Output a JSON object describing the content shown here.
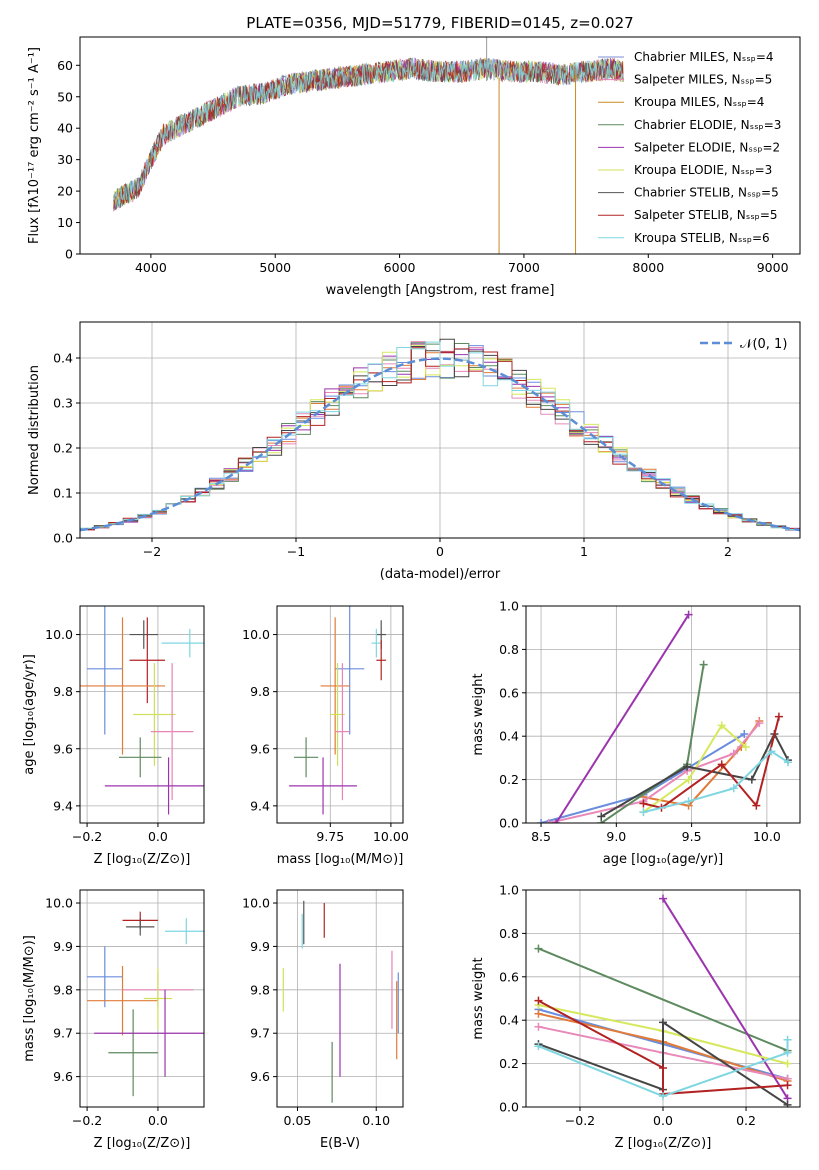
{
  "colors": {
    "cm": "#7d8fd6",
    "sm": "#e784b8",
    "km": "#c98a22",
    "ce": "#5e8a5f",
    "se": "#9b35ad",
    "ke": "#d1e05a",
    "cs": "#555555",
    "ss": "#b22222",
    "ks": "#7fd6e0",
    "mass_c1": "#6a8ddd",
    "mass_c2": "#e07b39",
    "mass_c3": "#e889b9",
    "mass_c4": "#5e8a5f",
    "mass_c5": "#9b35ad",
    "mass_c6": "#d6e85c",
    "mass_c7": "#454545",
    "mass_c8": "#b22222",
    "mass_c9": "#7fd6e0"
  },
  "chart_data": [
    {
      "id": "spectrum",
      "type": "line",
      "title": "PLATE=0356, MJD=51779, FIBERID=0145, z=0.027",
      "xlabel": "wavelength [Angstrom, rest frame]",
      "ylabel": "Flux [fλ10⁻¹⁷ erg cm⁻² s⁻¹ A⁻¹]",
      "xlim": [
        3430,
        9220
      ],
      "ylim": [
        0,
        69
      ],
      "xticks": [
        "4000",
        "5000",
        "6000",
        "7000",
        "8000",
        "9000"
      ],
      "yticks": [
        "0",
        "10",
        "20",
        "30",
        "40",
        "50",
        "60"
      ],
      "continuum": {
        "x": [
          3700,
          3900,
          4000,
          4100,
          4300,
          4500,
          4700,
          4900,
          5100,
          5300,
          5500,
          5700,
          5900,
          6100,
          6300,
          6500,
          6700,
          6900,
          7100,
          7300,
          7500,
          7700,
          7800
        ],
        "y": [
          17,
          21,
          30,
          38,
          42,
          46,
          50,
          51,
          54,
          55,
          56,
          57,
          58,
          59,
          58,
          58,
          59,
          58,
          58,
          57,
          58,
          59,
          58
        ]
      },
      "legend": [
        {
          "label": "Chabrier MILES, Nₛₛₚ=4",
          "color": "cm"
        },
        {
          "label": "Salpeter MILES, Nₛₛₚ=5",
          "color": "sm"
        },
        {
          "label": "Kroupa MILES, Nₛₛₚ=4",
          "color": "km"
        },
        {
          "label": "Chabrier ELODIE, Nₛₛₚ=3",
          "color": "ce"
        },
        {
          "label": "Salpeter ELODIE, Nₛₛₚ=2",
          "color": "se"
        },
        {
          "label": "Kroupa ELODIE, Nₛₛₚ=3",
          "color": "ke"
        },
        {
          "label": "Chabrier STELIB, Nₛₛₚ=5",
          "color": "cs"
        },
        {
          "label": "Salpeter STELIB, Nₛₛₚ=5",
          "color": "ss"
        },
        {
          "label": "Kroupa STELIB, Nₛₛₚ=6",
          "color": "ks"
        }
      ]
    },
    {
      "id": "residuals",
      "type": "histogram",
      "xlabel": "(data-model)/error",
      "ylabel": "Normed distribution",
      "xlim": [
        -2.5,
        2.5
      ],
      "ylim": [
        0,
        0.48
      ],
      "xticks": [
        "−2",
        "−1",
        "0",
        "1",
        "2"
      ],
      "yticks": [
        "0.0",
        "0.1",
        "0.2",
        "0.3",
        "0.4"
      ],
      "grid": true,
      "legend": [
        {
          "label": "𝒩(0, 1)",
          "color": "#5b8ed6",
          "style": "dashed"
        }
      ],
      "bin_width": 0.1
    },
    {
      "id": "z-age",
      "type": "errorbar",
      "xlabel": "Z [log₁₀(Z/Z⊙)]",
      "ylabel": "age  [log₁₀(age/yr)]",
      "xlim": [
        -0.22,
        0.13
      ],
      "ylim": [
        9.34,
        10.1
      ],
      "xticks": [
        "−0.2",
        "0.0"
      ],
      "yticks": [
        "9.4",
        "9.6",
        "9.8",
        "10.0"
      ],
      "points": [
        {
          "x": -0.04,
          "y": 10.0,
          "xe": 0.04,
          "ye": 0.05,
          "color": "cs"
        },
        {
          "x": 0.09,
          "y": 9.97,
          "xe": 0.08,
          "ye": 0.05,
          "color": "ks"
        },
        {
          "x": -0.03,
          "y": 9.91,
          "xe": 0.05,
          "ye": 0.15,
          "color": "ss"
        },
        {
          "x": -0.15,
          "y": 9.88,
          "xe": 0.05,
          "ye": 0.23,
          "color": "mass_c1"
        },
        {
          "x": -0.1,
          "y": 9.82,
          "xe": 0.12,
          "ye": 0.24,
          "color": "mass_c2"
        },
        {
          "x": -0.01,
          "y": 9.72,
          "xe": 0.06,
          "ye": 0.18,
          "color": "ke"
        },
        {
          "x": 0.04,
          "y": 9.66,
          "xe": 0.06,
          "ye": 0.24,
          "color": "sm"
        },
        {
          "x": -0.05,
          "y": 9.57,
          "xe": 0.06,
          "ye": 0.07,
          "color": "ce"
        },
        {
          "x": 0.03,
          "y": 9.47,
          "xe": 0.18,
          "ye": 0.1,
          "color": "se"
        }
      ]
    },
    {
      "id": "mass-age",
      "type": "errorbar",
      "xlabel": "mass [log₁₀(M/M⊙)]",
      "ylabel": "",
      "xlim": [
        9.53,
        10.05
      ],
      "ylim": [
        9.34,
        10.1
      ],
      "xticks": [
        "9.75",
        "10.00"
      ],
      "yticks": [
        "9.4",
        "9.6",
        "9.8",
        "10.0"
      ],
      "points": [
        {
          "x": 9.96,
          "y": 10.0,
          "xe": 0.02,
          "ye": 0.05,
          "color": "cs"
        },
        {
          "x": 9.94,
          "y": 9.97,
          "xe": 0.02,
          "ye": 0.05,
          "color": "ks"
        },
        {
          "x": 9.96,
          "y": 9.91,
          "xe": 0.02,
          "ye": 0.07,
          "color": "ss"
        },
        {
          "x": 9.83,
          "y": 9.88,
          "xe": 0.06,
          "ye": 0.23,
          "color": "mass_c1"
        },
        {
          "x": 9.77,
          "y": 9.82,
          "xe": 0.06,
          "ye": 0.24,
          "color": "mass_c2"
        },
        {
          "x": 9.78,
          "y": 9.72,
          "xe": 0.03,
          "ye": 0.18,
          "color": "ke"
        },
        {
          "x": 9.8,
          "y": 9.66,
          "xe": 0.03,
          "ye": 0.24,
          "color": "sm"
        },
        {
          "x": 9.65,
          "y": 9.57,
          "xe": 0.05,
          "ye": 0.07,
          "color": "ce"
        },
        {
          "x": 9.72,
          "y": 9.47,
          "xe": 0.14,
          "ye": 0.1,
          "color": "se"
        }
      ]
    },
    {
      "id": "age-weight",
      "type": "line",
      "xlabel": "age  [log₁₀(age/yr)]",
      "ylabel": "mass weight",
      "xlim": [
        8.4,
        10.22
      ],
      "ylim": [
        0,
        1.0
      ],
      "xticks": [
        "8.5",
        "9.0",
        "9.5",
        "10.0"
      ],
      "yticks": [
        "0.0",
        "0.2",
        "0.4",
        "0.6",
        "0.8",
        "1.0"
      ],
      "grid": true,
      "series": [
        {
          "color": "mass_c1",
          "x": [
            8.5,
            9.18,
            9.85
          ],
          "y": [
            0.0,
            0.13,
            0.41
          ]
        },
        {
          "color": "mass_c2",
          "x": [
            9.18,
            9.48,
            9.83,
            9.95
          ],
          "y": [
            0.12,
            0.08,
            0.35,
            0.47
          ]
        },
        {
          "color": "mass_c3",
          "x": [
            8.55,
            9.18,
            9.47,
            9.78,
            9.95
          ],
          "y": [
            0.0,
            0.1,
            0.24,
            0.32,
            0.46
          ]
        },
        {
          "color": "mass_c4",
          "x": [
            8.9,
            9.47,
            9.58
          ],
          "y": [
            0.0,
            0.27,
            0.73
          ]
        },
        {
          "color": "mass_c5",
          "x": [
            8.6,
            9.48
          ],
          "y": [
            0.0,
            0.96
          ]
        },
        {
          "color": "mass_c6",
          "x": [
            9.18,
            9.48,
            9.7,
            9.86
          ],
          "y": [
            0.05,
            0.2,
            0.45,
            0.35
          ]
        },
        {
          "color": "mass_c7",
          "x": [
            8.9,
            9.47,
            9.9,
            10.05,
            10.14
          ],
          "y": [
            0.03,
            0.26,
            0.2,
            0.41,
            0.29
          ]
        },
        {
          "color": "mass_c8",
          "x": [
            9.18,
            9.3,
            9.7,
            9.93,
            10.08
          ],
          "y": [
            0.09,
            0.07,
            0.27,
            0.08,
            0.49
          ]
        },
        {
          "color": "mass_c9",
          "x": [
            9.18,
            9.48,
            9.78,
            10.03,
            10.14
          ],
          "y": [
            0.05,
            0.1,
            0.16,
            0.33,
            0.28
          ]
        }
      ]
    },
    {
      "id": "z-mass",
      "type": "errorbar",
      "xlabel": "Z [log₁₀(Z/Z⊙)]",
      "ylabel": "mass [log₁₀(M/M⊙)]",
      "xlim": [
        -0.22,
        0.13
      ],
      "ylim": [
        9.53,
        10.03
      ],
      "xticks": [
        "−0.2",
        "0.0"
      ],
      "yticks": [
        "9.6",
        "9.7",
        "9.8",
        "9.9",
        "10.0"
      ],
      "points": [
        {
          "x": -0.05,
          "y": 9.96,
          "xe": 0.05,
          "ye": 0.02,
          "color": "ss"
        },
        {
          "x": -0.05,
          "y": 9.945,
          "xe": 0.04,
          "ye": 0.02,
          "color": "cs"
        },
        {
          "x": 0.08,
          "y": 9.935,
          "xe": 0.06,
          "ye": 0.03,
          "color": "ks"
        },
        {
          "x": -0.15,
          "y": 9.83,
          "xe": 0.05,
          "ye": 0.07,
          "color": "mass_c1"
        },
        {
          "x": 0.0,
          "y": 9.8,
          "xe": 0.1,
          "ye": 0.04,
          "color": "sm"
        },
        {
          "x": -0.1,
          "y": 9.775,
          "xe": 0.1,
          "ye": 0.08,
          "color": "mass_c2"
        },
        {
          "x": 0.0,
          "y": 9.78,
          "xe": 0.04,
          "ye": 0.07,
          "color": "ke"
        },
        {
          "x": -0.07,
          "y": 9.655,
          "xe": 0.07,
          "ye": 0.1,
          "color": "ce"
        },
        {
          "x": 0.02,
          "y": 9.7,
          "xe": 0.2,
          "ye": 0.1,
          "color": "se"
        }
      ]
    },
    {
      "id": "ebv-mass",
      "type": "errorbar",
      "xlabel": "E(B-V)",
      "ylabel": "",
      "xlim": [
        0.037,
        0.117
      ],
      "ylim": [
        9.53,
        10.03
      ],
      "xticks": [
        "0.05",
        "0.10"
      ],
      "yticks": [
        "9.6",
        "9.7",
        "9.8",
        "9.9",
        "10.0"
      ],
      "points": [
        {
          "x": 0.067,
          "y": 9.96,
          "xe": 0,
          "ye": 0.04,
          "color": "ss"
        },
        {
          "x": 0.054,
          "y": 9.955,
          "xe": 0,
          "ye": 0.05,
          "color": "cs"
        },
        {
          "x": 0.053,
          "y": 9.935,
          "xe": 0,
          "ye": 0.04,
          "color": "ks"
        },
        {
          "x": 0.041,
          "y": 9.8,
          "xe": 0,
          "ye": 0.05,
          "color": "ke"
        },
        {
          "x": 0.072,
          "y": 9.61,
          "xe": 0,
          "ye": 0.07,
          "color": "ce"
        },
        {
          "x": 0.077,
          "y": 9.73,
          "xe": 0,
          "ye": 0.13,
          "color": "se"
        },
        {
          "x": 0.11,
          "y": 9.8,
          "xe": 0,
          "ye": 0.09,
          "color": "sm"
        },
        {
          "x": 0.113,
          "y": 9.73,
          "xe": 0,
          "ye": 0.09,
          "color": "mass_c2"
        },
        {
          "x": 0.114,
          "y": 9.77,
          "xe": 0,
          "ye": 0.07,
          "color": "mass_c1"
        }
      ]
    },
    {
      "id": "z-weight",
      "type": "line",
      "xlabel": "Z [log₁₀(Z/Z⊙)]",
      "ylabel": "mass weight",
      "xlim": [
        -0.33,
        0.33
      ],
      "ylim": [
        0,
        1.0
      ],
      "xticks": [
        "−0.2",
        "0.0",
        "0.2"
      ],
      "yticks": [
        "0.0",
        "0.2",
        "0.4",
        "0.6",
        "0.8",
        "1.0"
      ],
      "grid": true,
      "series": [
        {
          "color": "mass_c1",
          "x": [
            -0.3,
            0.3
          ],
          "y": [
            0.45,
            0.13
          ]
        },
        {
          "color": "mass_c2",
          "x": [
            -0.3,
            0.0,
            0.3
          ],
          "y": [
            0.43,
            0.3,
            0.12
          ]
        },
        {
          "color": "mass_c3",
          "x": [
            -0.3,
            0.0,
            0.3
          ],
          "y": [
            0.37,
            0.25,
            0.13
          ]
        },
        {
          "color": "mass_c4",
          "x": [
            -0.3,
            0.3
          ],
          "y": [
            0.73,
            0.26
          ]
        },
        {
          "color": "mass_c5",
          "x": [
            0.0,
            0.3
          ],
          "y": [
            0.96,
            0.04
          ]
        },
        {
          "color": "mass_c6",
          "x": [
            -0.3,
            0.0,
            0.3
          ],
          "y": [
            0.47,
            0.35,
            0.2
          ]
        },
        {
          "color": "mass_c7",
          "x": [
            -0.3,
            0.0,
            0.0,
            0.3
          ],
          "y": [
            0.29,
            0.08,
            0.39,
            0.01
          ]
        },
        {
          "color": "mass_c8",
          "x": [
            -0.3,
            0.0,
            0.0,
            0.3
          ],
          "y": [
            0.49,
            0.18,
            0.06,
            0.1
          ]
        },
        {
          "color": "mass_c9",
          "x": [
            -0.3,
            0.0,
            0.3,
            0.3
          ],
          "y": [
            0.28,
            0.05,
            0.25,
            0.31
          ]
        }
      ]
    }
  ]
}
